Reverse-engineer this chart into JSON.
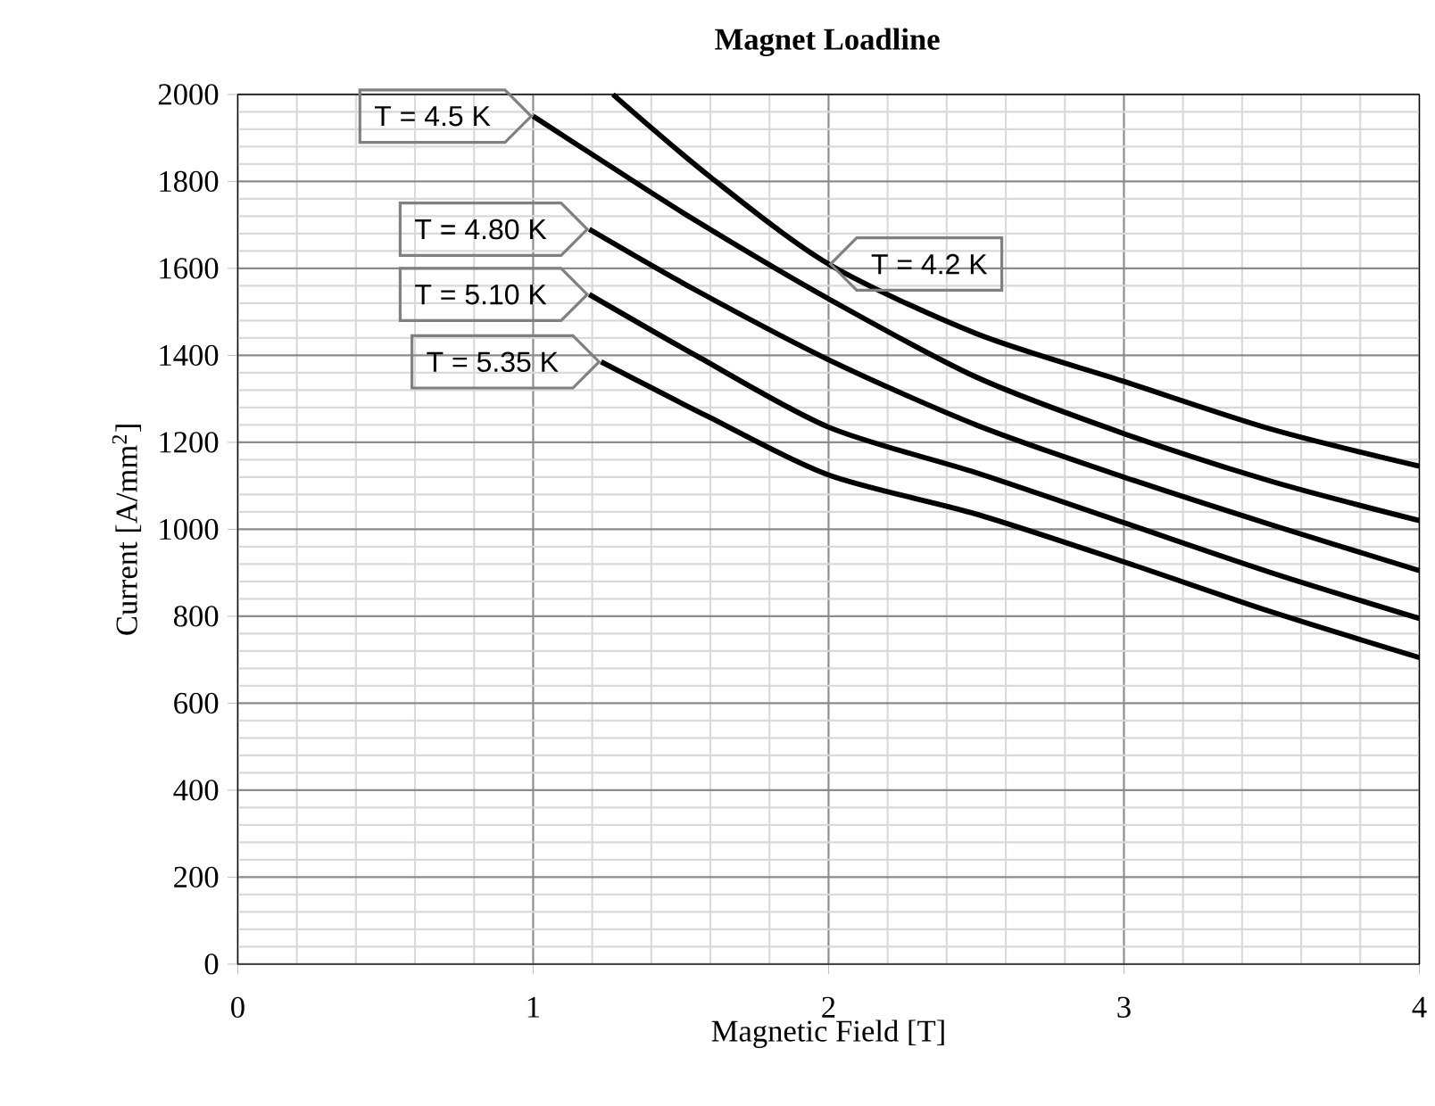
{
  "chart_data": {
    "type": "line",
    "title": "Magnet Loadline",
    "xlabel": "Magnetic Field [T]",
    "ylabel": "Current [A/mm$^{2}$]",
    "xlim": [
      0,
      4
    ],
    "xticks": [
      0,
      1,
      2,
      3,
      4
    ],
    "ylim": [
      0,
      2000
    ],
    "yticks": [
      0,
      200,
      400,
      600,
      800,
      1000,
      1200,
      1400,
      1600,
      1800,
      2000
    ],
    "grid": true,
    "marker": "none",
    "line_style": "solid",
    "series": [
      {
        "name": "T = 4.2 K",
        "color": "#000000",
        "x": [
          1.27,
          1.6,
          2,
          2.5,
          3,
          3.5,
          4
        ],
        "values": [
          2000,
          1810,
          1610,
          1450,
          1340,
          1230,
          1145
        ]
      },
      {
        "name": "T = 4.5 K",
        "color": "#000000",
        "x": [
          1,
          1.25,
          1.55,
          2,
          2.5,
          3,
          3.5,
          4
        ],
        "values": [
          1950,
          1840,
          1710,
          1530,
          1350,
          1220,
          1110,
          1020
        ]
      },
      {
        "name": "T = 4.80 K",
        "color": "#000000",
        "x": [
          1.19,
          1.55,
          2,
          2.5,
          3,
          3.5,
          4
        ],
        "values": [
          1690,
          1550,
          1390,
          1240,
          1120,
          1010,
          905
        ]
      },
      {
        "name": "T = 5.10 K",
        "color": "#000000",
        "x": [
          1.19,
          1.55,
          2,
          2.5,
          3,
          3.5,
          4
        ],
        "values": [
          1540,
          1400,
          1235,
          1130,
          1015,
          900,
          795
        ]
      },
      {
        "name": "T = 5.35 K",
        "color": "#000000",
        "x": [
          1.23,
          1.59,
          2,
          2.5,
          3,
          3.5,
          4
        ],
        "values": [
          1385,
          1260,
          1125,
          1035,
          925,
          810,
          705
        ]
      }
    ]
  }
}
